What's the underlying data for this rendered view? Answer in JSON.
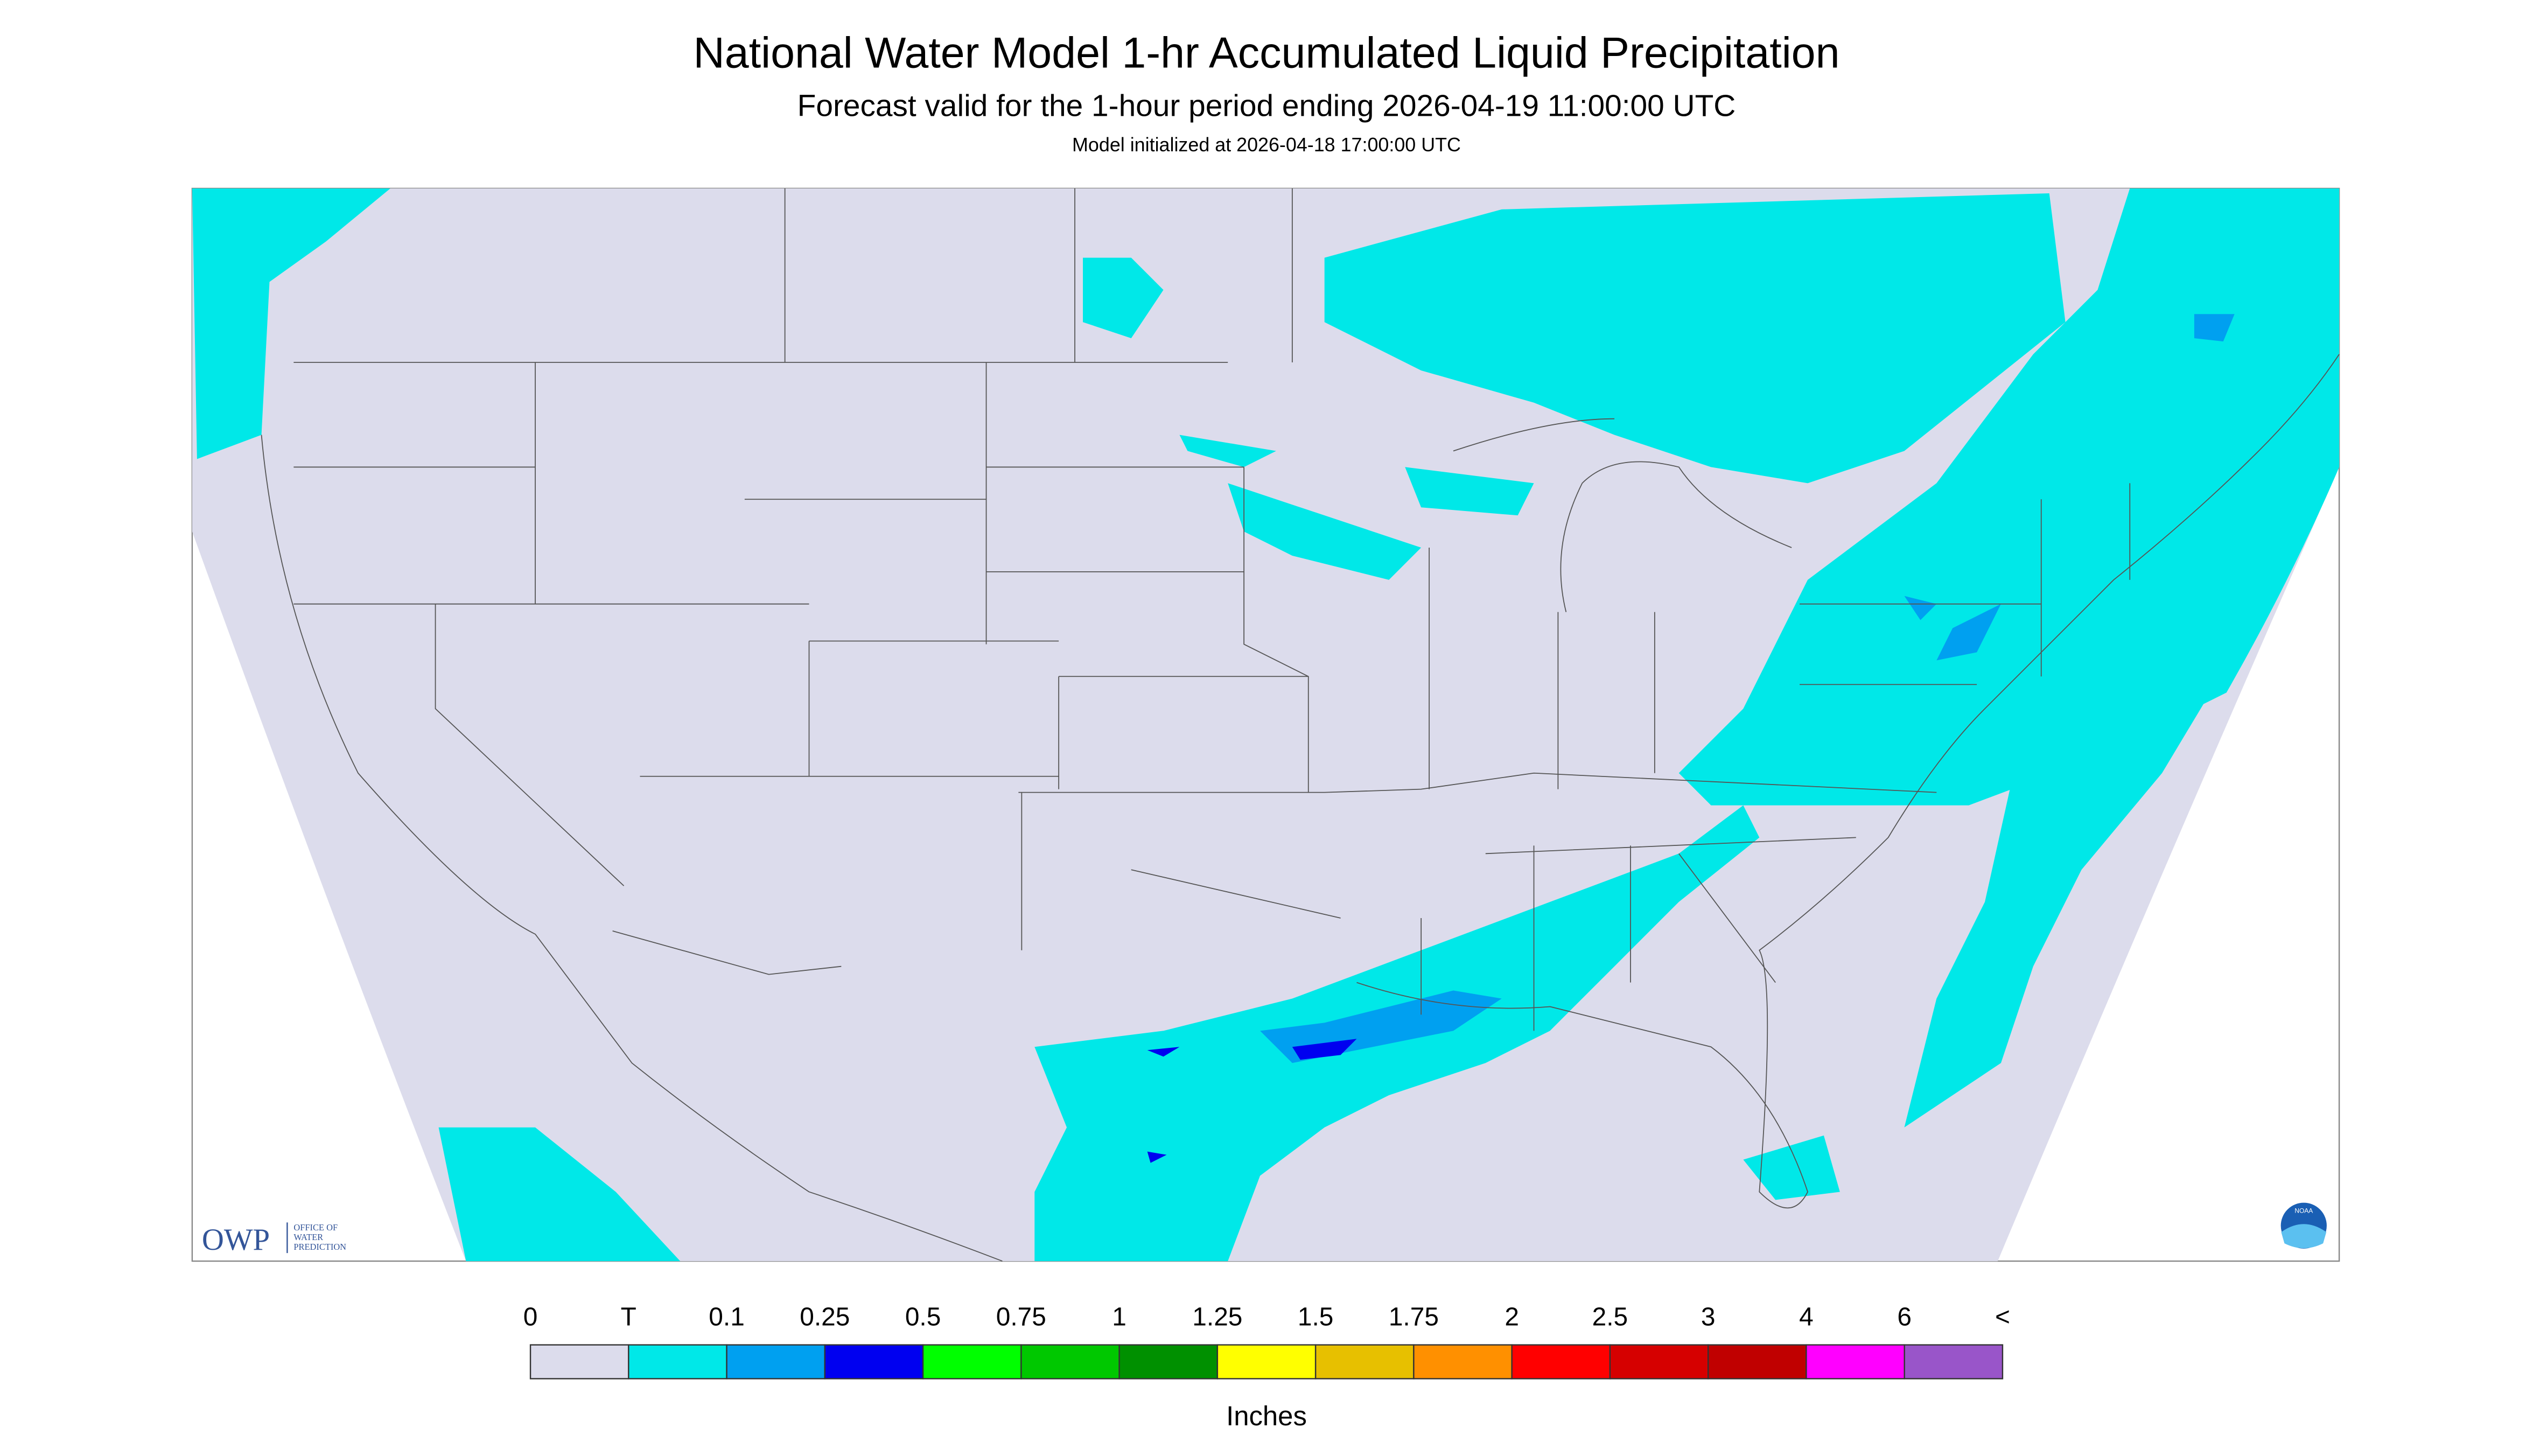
{
  "header": {
    "title": "National Water Model 1-hr Accumulated Liquid Precipitation",
    "subtitle": "Forecast valid for the 1-hour period ending 2026-04-19 11:00:00 UTC",
    "init": "Model initialized at 2026-04-18 17:00:00 UTC"
  },
  "logos": {
    "owp": "OWP",
    "owp_text": [
      "OFFICE OF",
      "WATER",
      "PREDICTION"
    ],
    "noaa": "NOAA"
  },
  "legend": {
    "labels": [
      "0",
      "T",
      "0.1",
      "0.25",
      "0.5",
      "0.75",
      "1",
      "1.25",
      "1.5",
      "1.75",
      "2",
      "2.5",
      "3",
      "4",
      "6",
      "<"
    ],
    "colors": [
      "#dcdcec",
      "#00e8e8",
      "#00a0f0",
      "#0000f0",
      "#00ff00",
      "#00c800",
      "#009000",
      "#ffff00",
      "#e7c000",
      "#ff9000",
      "#ff0000",
      "#d60000",
      "#c00000",
      "#ff00ff",
      "#9955c9"
    ],
    "unit": "Inches"
  }
}
